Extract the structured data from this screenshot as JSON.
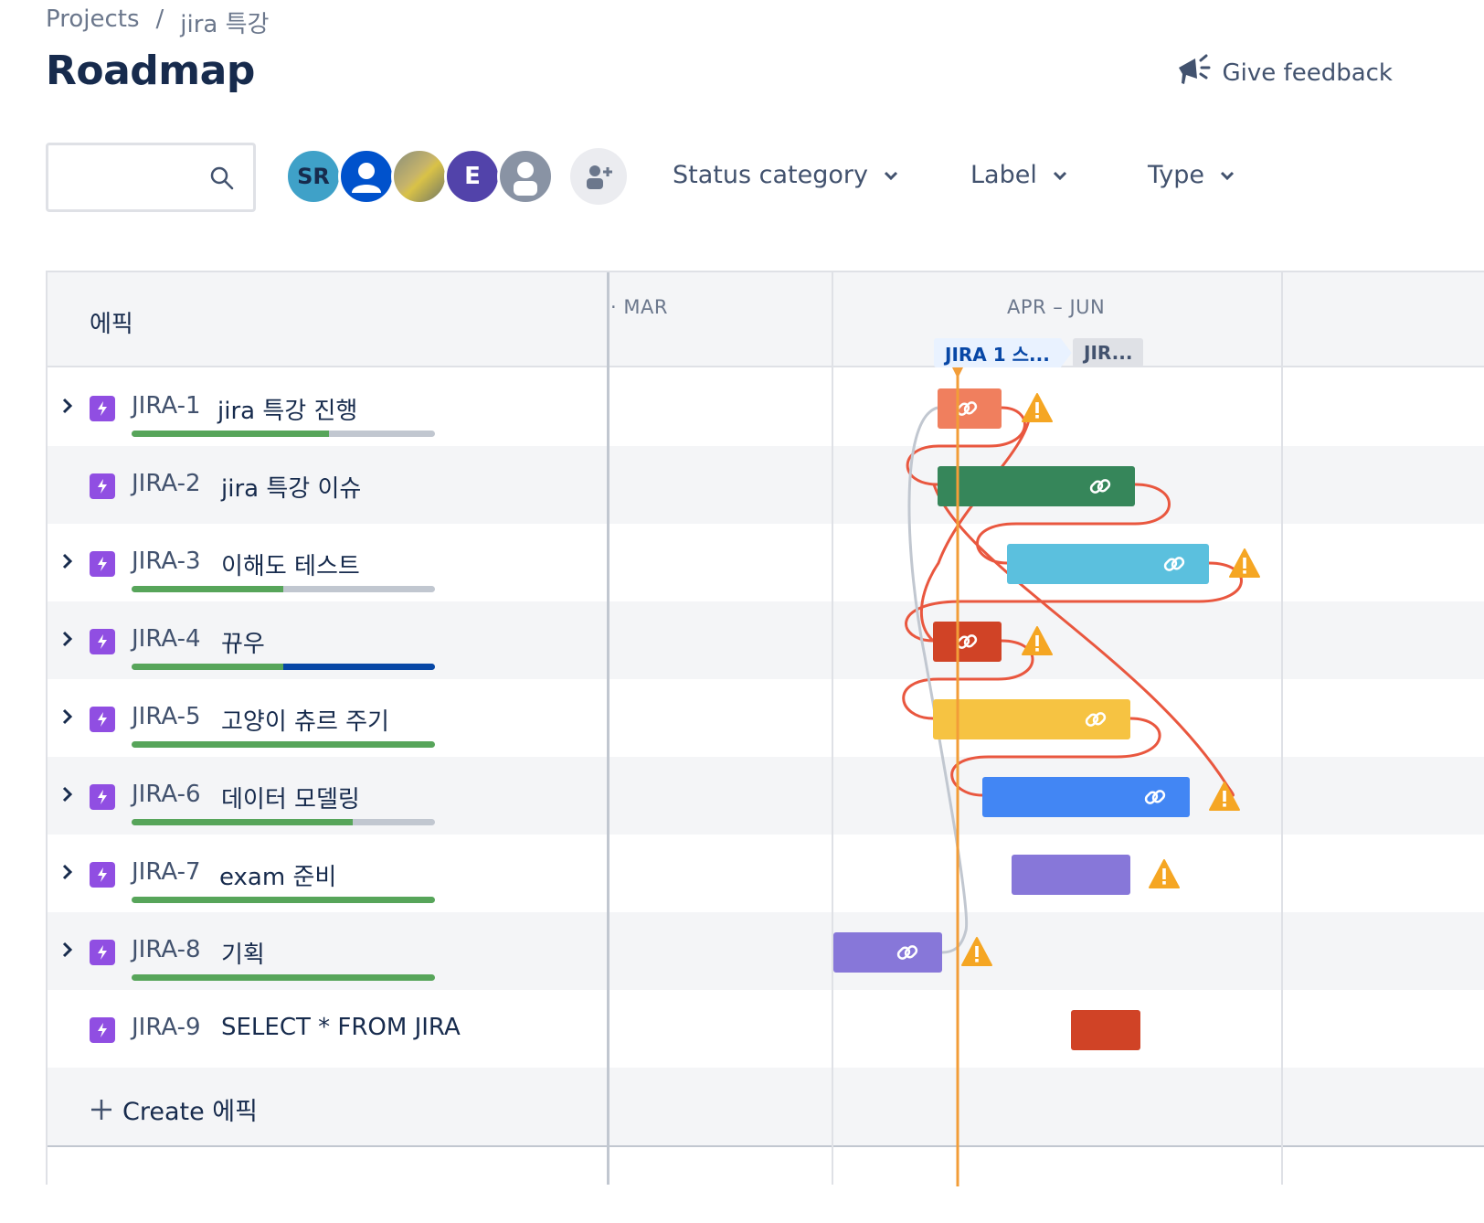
{
  "breadcrumb": {
    "projects": "Projects",
    "separator": "/",
    "project": "jira 특강"
  },
  "page": {
    "title": "Roadmap",
    "feedback_label": "Give feedback"
  },
  "toolbar": {
    "search_placeholder": "",
    "avatars": [
      {
        "initials": "SR",
        "color": "#3fa1c8"
      },
      {
        "initials": "",
        "color": "#0052cc"
      },
      {
        "initials": "",
        "color": "#c7b46a"
      },
      {
        "initials": "E",
        "color": "#5243aa"
      },
      {
        "initials": "",
        "color": "#8993a4"
      }
    ],
    "filters": {
      "status": "Status category",
      "label": "Label",
      "type": "Type"
    }
  },
  "grid": {
    "epic_header": "에픽",
    "quarters": {
      "mar": "MAR",
      "apr_jun": "APR – JUN"
    },
    "releases": [
      "JIRA 1 스...",
      "JIR..."
    ],
    "create_label": "Create 에픽"
  },
  "epics": [
    {
      "key": "JIRA-1",
      "summary": "jira 특강 진행",
      "has_children": true,
      "progress": {
        "done": 0.65,
        "in_progress": 0
      },
      "bar_color": "#f07f5e",
      "linked": true,
      "warning": true
    },
    {
      "key": "JIRA-2",
      "summary": "jira 특강 이슈",
      "has_children": false,
      "progress": null,
      "bar_color": "#36865a",
      "linked": true,
      "warning": false
    },
    {
      "key": "JIRA-3",
      "summary": "이해도 테스트",
      "has_children": true,
      "progress": {
        "done": 0.5,
        "in_progress": 0
      },
      "bar_color": "#5bc0de",
      "linked": true,
      "warning": true
    },
    {
      "key": "JIRA-4",
      "summary": "뀨우",
      "has_children": true,
      "progress": {
        "done": 0.5,
        "in_progress": 0.5
      },
      "bar_color": "#d04326",
      "linked": true,
      "warning": true
    },
    {
      "key": "JIRA-5",
      "summary": "고양이 츄르 주기",
      "has_children": true,
      "progress": {
        "done": 1.0,
        "in_progress": 0
      },
      "bar_color": "#f6c342",
      "linked": true,
      "warning": false
    },
    {
      "key": "JIRA-6",
      "summary": "데이터 모델링",
      "has_children": true,
      "progress": {
        "done": 0.73,
        "in_progress": 0
      },
      "bar_color": "#4286f4",
      "linked": true,
      "warning": true
    },
    {
      "key": "JIRA-7",
      "summary": "exam 준비",
      "has_children": true,
      "progress": {
        "done": 1.0,
        "in_progress": 0
      },
      "bar_color": "#8777d9",
      "linked": false,
      "warning": true
    },
    {
      "key": "JIRA-8",
      "summary": "기획",
      "has_children": true,
      "progress": {
        "done": 1.0,
        "in_progress": 0
      },
      "bar_color": "#8777d9",
      "linked": true,
      "warning": true
    },
    {
      "key": "JIRA-9",
      "summary": "SELECT * FROM JIRA",
      "has_children": false,
      "progress": null,
      "bar_color": "#d04326",
      "linked": false,
      "warning": false
    }
  ],
  "colors": {
    "today_line": "#f29d38",
    "dependency": "#e9573f",
    "dependency_ok": "#c1c7d0",
    "warning": "#f5a623"
  }
}
